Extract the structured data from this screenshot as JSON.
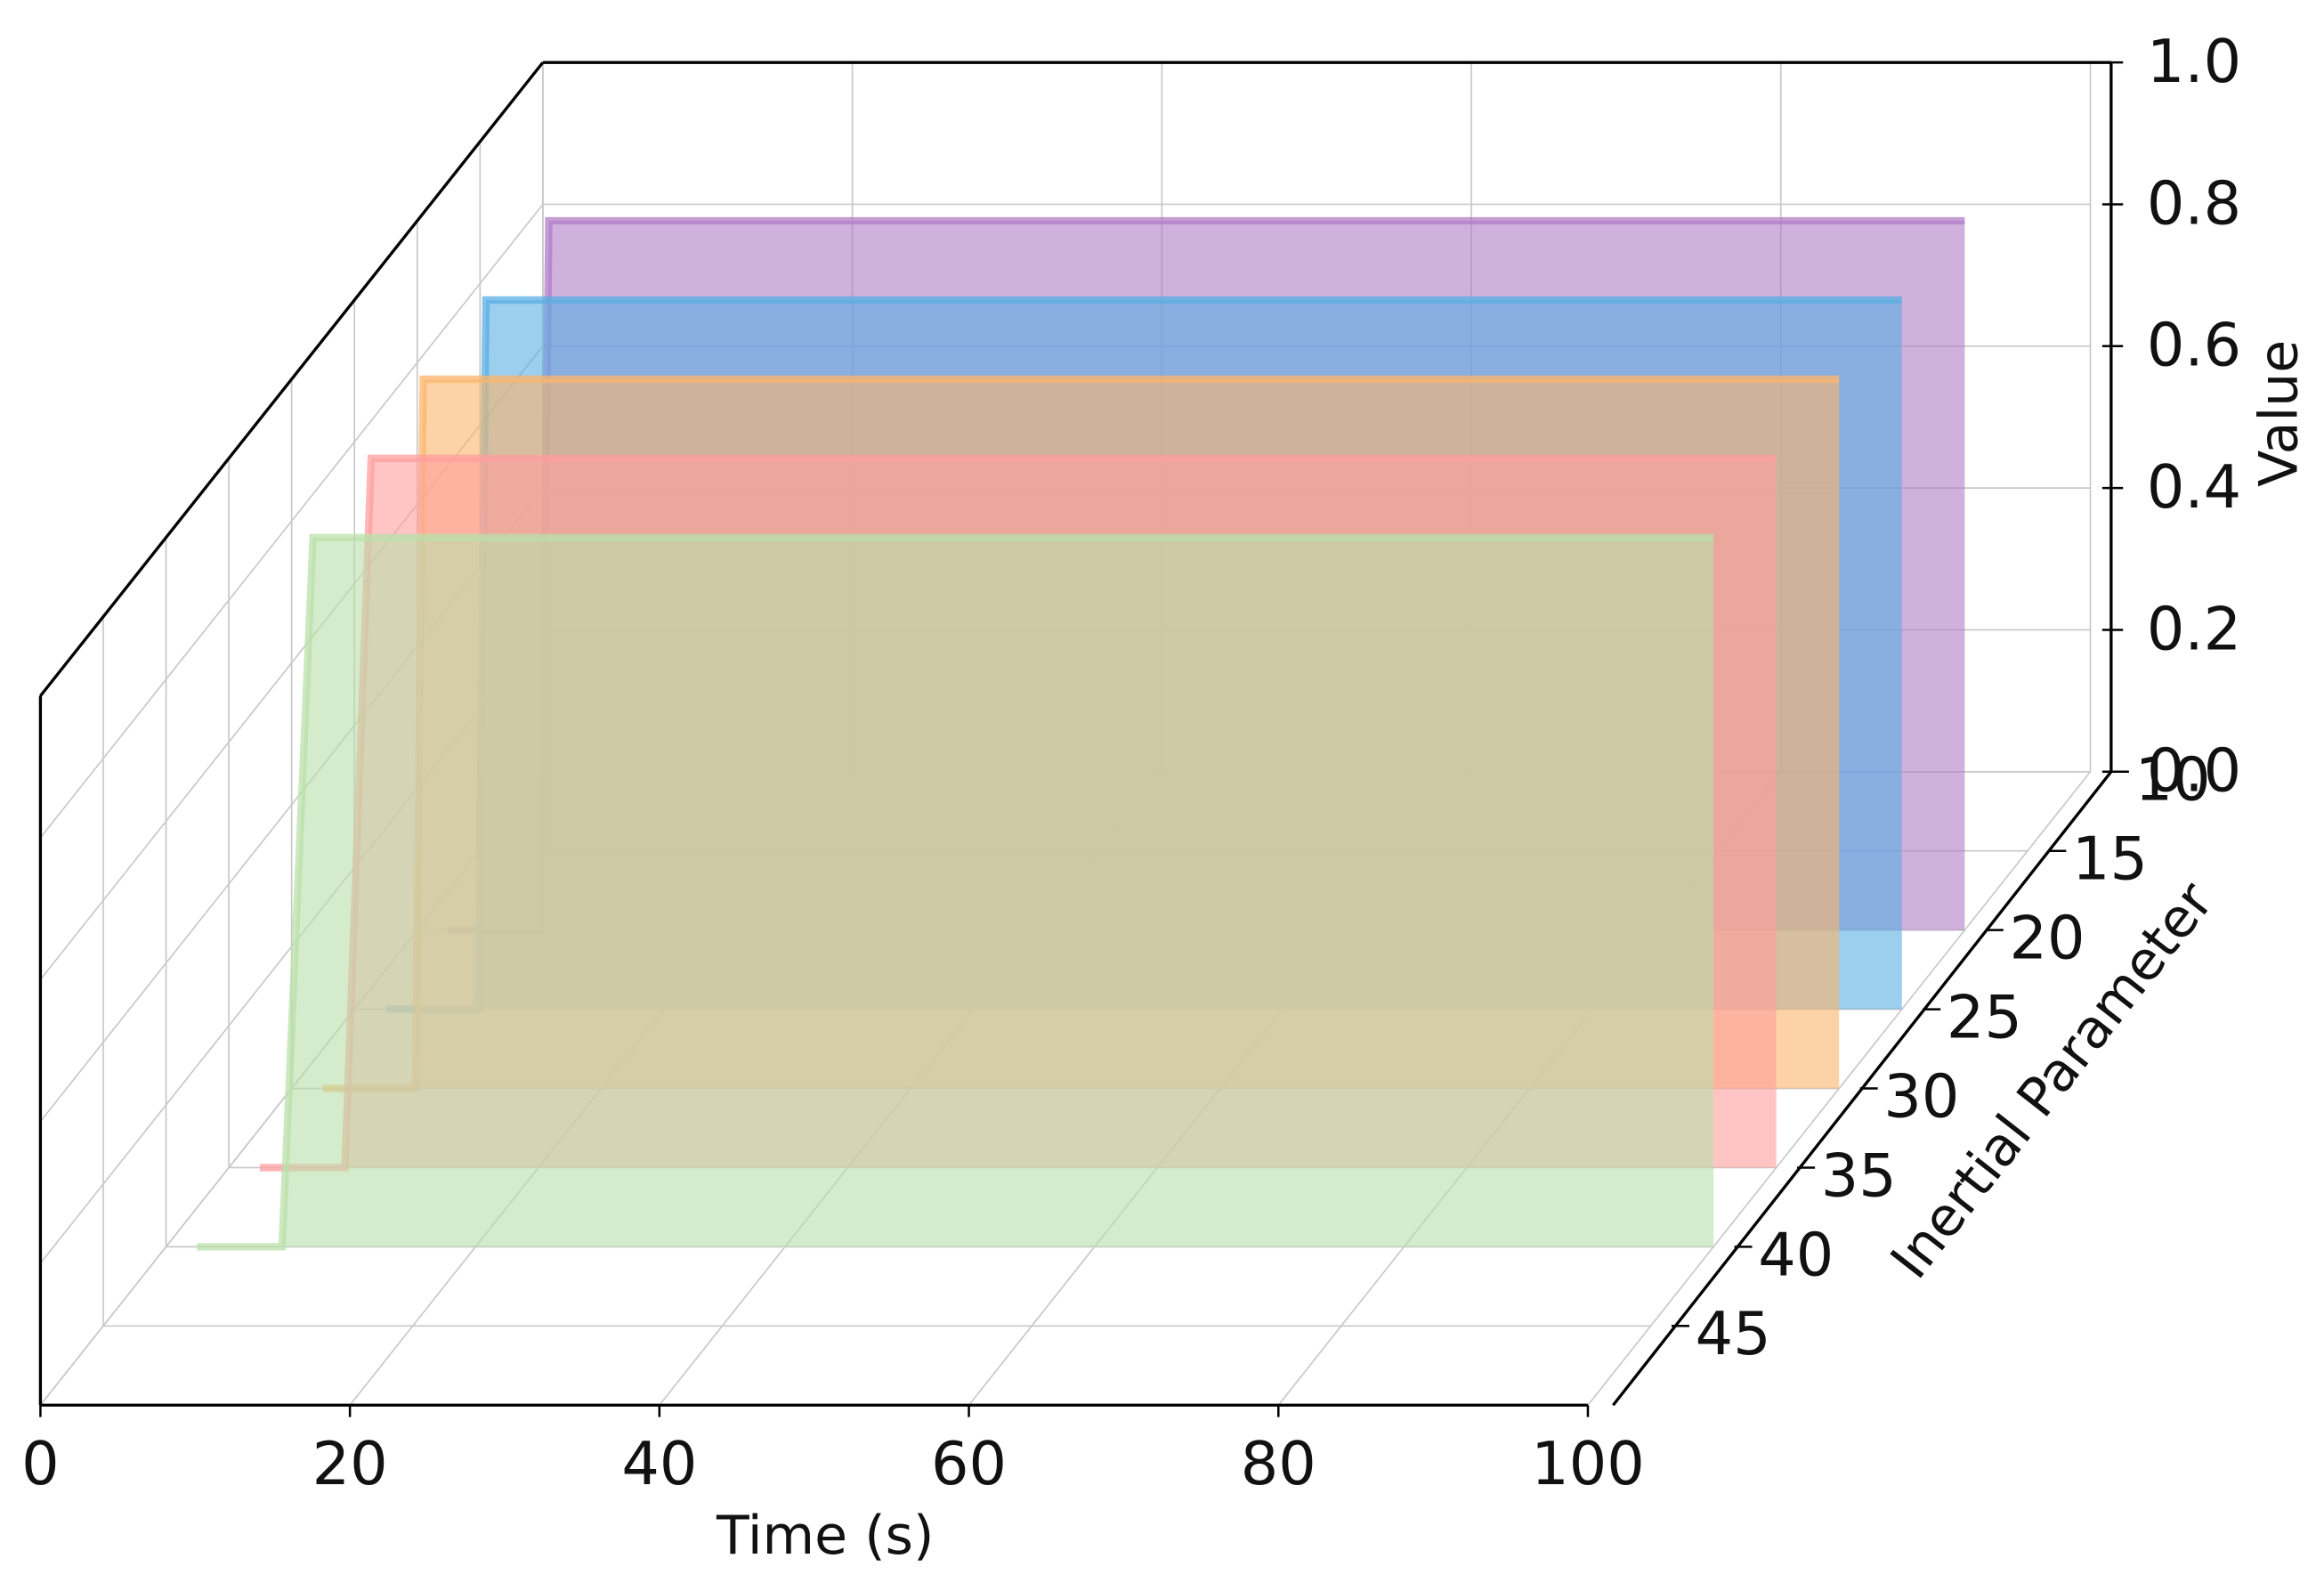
{
  "chart_data": {
    "type": "line3d",
    "xlabel": "Time (s)",
    "ylabel": "Inertial Parameter",
    "zlabel": "Value",
    "xlim": [
      0,
      100
    ],
    "xticks": [
      0,
      20,
      40,
      60,
      80,
      100
    ],
    "ylim": [
      10,
      50
    ],
    "yticks": [
      10,
      15,
      20,
      25,
      30,
      35,
      40,
      45
    ],
    "zlim": [
      0,
      1
    ],
    "zticks": [
      {
        "value": 0,
        "label": "0.0"
      },
      0.2,
      0.4,
      0.6,
      0.8,
      {
        "value": 1,
        "label": "1.0"
      }
    ],
    "grid": true,
    "series": [
      {
        "depth": 20,
        "color": "#b07cc6",
        "x": [
          2,
          8,
          8.5,
          100
        ],
        "values": [
          0,
          0,
          1,
          1
        ]
      },
      {
        "depth": 25,
        "color": "#5aaee3",
        "x": [
          2,
          8,
          8.5,
          100
        ],
        "values": [
          0,
          0,
          1,
          1
        ]
      },
      {
        "depth": 30,
        "color": "#fbb56b",
        "x": [
          2,
          8,
          8.5,
          100
        ],
        "values": [
          0,
          0,
          1,
          1
        ]
      },
      {
        "depth": 35,
        "color": "#ff9e9e",
        "x": [
          2,
          7.5,
          9.2,
          100
        ],
        "values": [
          0,
          0,
          1,
          1
        ]
      },
      {
        "depth": 40,
        "color": "#b9e0aa",
        "x": [
          2,
          7.5,
          9.5,
          100
        ],
        "values": [
          0,
          0,
          1,
          1
        ]
      }
    ]
  }
}
